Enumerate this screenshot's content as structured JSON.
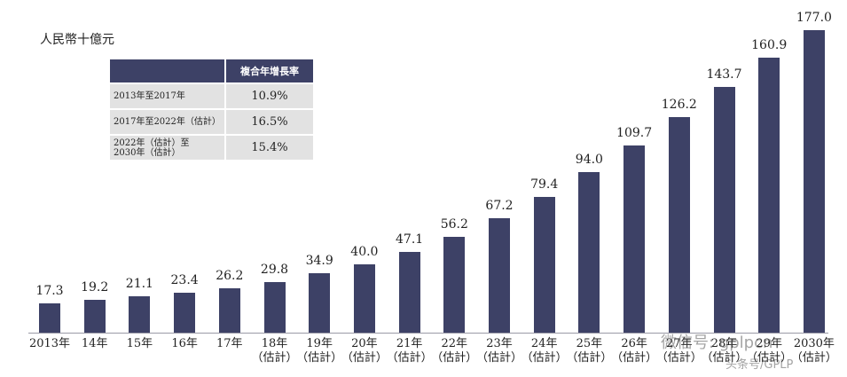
{
  "unit_label": "人民幣十億元",
  "cagr_table": {
    "header": [
      "",
      "複合年增長率"
    ],
    "rows": [
      {
        "period": "2013年至2017年",
        "rate": "10.9%"
      },
      {
        "period": "2017年至2022年（估計）",
        "rate": "16.5%"
      },
      {
        "period": "2022年（估計）至\n2030年（估計）",
        "rate": "15.4%"
      }
    ]
  },
  "watermark": {
    "line1": "微信号: gplpcn",
    "line2": "头条号/GPLP"
  },
  "colors": {
    "bar": "#3d4166",
    "table_header": "#3d4166",
    "table_body": "#e2e2e2"
  },
  "chart_data": {
    "type": "bar",
    "title": "",
    "ylabel": "人民幣十億元",
    "xlabel": "",
    "categories": [
      "2013年",
      "14年",
      "15年",
      "16年",
      "17年",
      "18年（估計）",
      "19年（估計）",
      "20年（估計）",
      "21年（估計）",
      "22年（估計）",
      "23年（估計）",
      "24年（估計）",
      "25年（估計）",
      "26年（估計）",
      "27年（估計）",
      "28年（估計）",
      "29年（估計）",
      "2030年（估計）"
    ],
    "values": [
      17.3,
      19.2,
      21.1,
      23.4,
      26.2,
      29.8,
      34.9,
      40.0,
      47.1,
      56.2,
      67.2,
      79.4,
      94.0,
      109.7,
      126.2,
      143.7,
      160.9,
      177.0
    ],
    "value_labels": [
      "17.3",
      "19.2",
      "21.1",
      "23.4",
      "26.2",
      "29.8",
      "34.9",
      "40.0",
      "47.1",
      "56.2",
      "67.2",
      "79.4",
      "94.0",
      "109.7",
      "126.2",
      "143.7",
      "160.9",
      "177.0"
    ],
    "x_labels": [
      [
        "2013年",
        ""
      ],
      [
        "14年",
        ""
      ],
      [
        "15年",
        ""
      ],
      [
        "16年",
        ""
      ],
      [
        "17年",
        ""
      ],
      [
        "18年",
        "（估計）"
      ],
      [
        "19年",
        "（估計）"
      ],
      [
        "20年",
        "（估計）"
      ],
      [
        "21年",
        "（估計）"
      ],
      [
        "22年",
        "（估計）"
      ],
      [
        "23年",
        "（估計）"
      ],
      [
        "24年",
        "（估計）"
      ],
      [
        "25年",
        "（估計）"
      ],
      [
        "26年",
        "（估計）"
      ],
      [
        "27年",
        "（估計）"
      ],
      [
        "28年",
        "（估計）"
      ],
      [
        "29年",
        "（估計）"
      ],
      [
        "2030年",
        "（估計）"
      ]
    ],
    "ylim": [
      0,
      177
    ],
    "grid": false,
    "legend": null,
    "annotations": [
      "複合年增長率 table: 2013年至2017年 10.9%; 2017年至2022年（估計） 16.5%; 2022年（估計）至2030年（估計） 15.4%"
    ]
  }
}
